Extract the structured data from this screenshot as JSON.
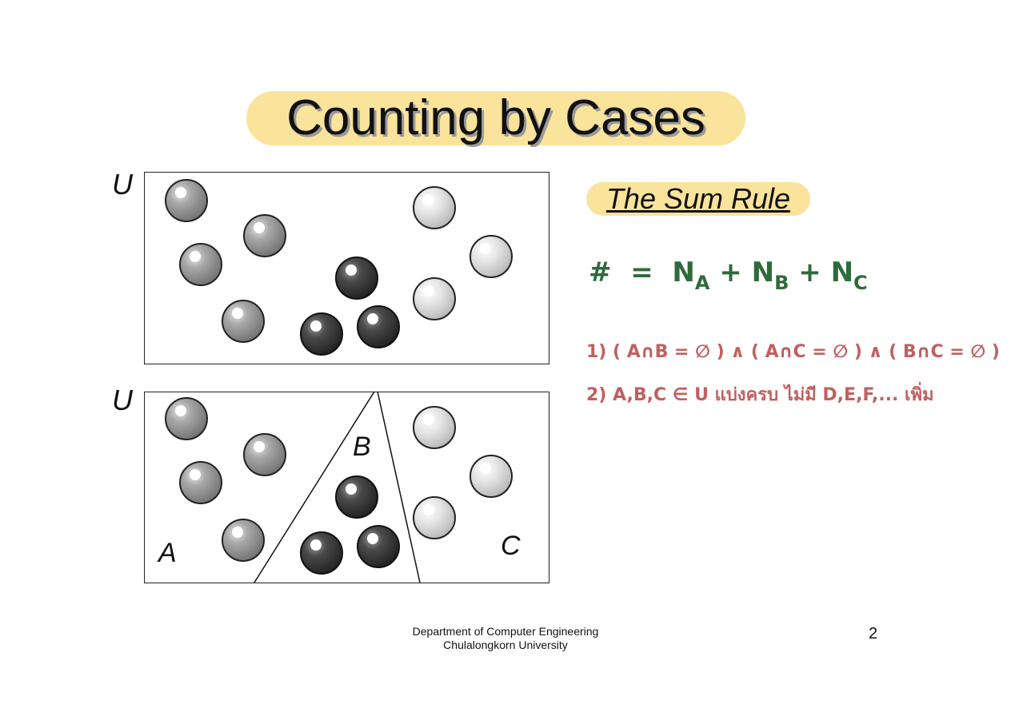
{
  "title": "Counting by Cases",
  "diagram": {
    "universe_label_top": "U",
    "universe_label_bottom": "U",
    "region_a": "A",
    "region_b": "B",
    "region_c": "C"
  },
  "sum_rule": {
    "heading": "The Sum Rule",
    "formula_hash": "#",
    "formula_eq": "=",
    "formula_n": "N",
    "formula_plus": "+",
    "sub_a": "A",
    "sub_b": "B",
    "sub_c": "C"
  },
  "conditions": [
    "1)  ( A∩B = ∅ ) ∧ ( A∩C = ∅ ) ∧ ( B∩C = ∅ )",
    "2)   A,B,C ∈ U  แบ่งครบ ไม่มี D,E,F,... เพิ่ม"
  ],
  "footer": {
    "line1": "Department of Computer Engineering",
    "line2": "Chulalongkorn University"
  },
  "page_number": "2",
  "colors": {
    "highlight": "#fae39b",
    "formula": "#2f6a3b",
    "conditions": "#c06060"
  }
}
